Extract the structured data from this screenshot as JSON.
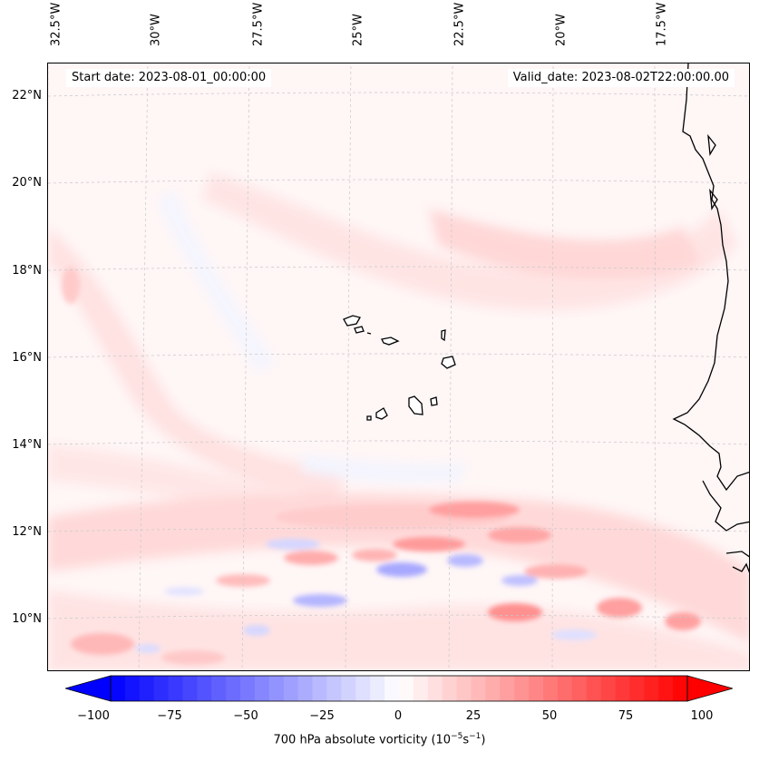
{
  "map": {
    "start_date": "Start date: 2023-08-01_00:00:00",
    "valid_date": "Valid_date: 2023-08-02T22:00:00.00",
    "lon_ticks": [
      "32.5°W",
      "30°W",
      "27.5°W",
      "25°W",
      "22.5°W",
      "20°W",
      "17.5°W"
    ],
    "lat_ticks": [
      "22°N",
      "20°N",
      "18°N",
      "16°N",
      "14°N",
      "12°N",
      "10°N"
    ],
    "features": [
      "Cape Verde Islands",
      "West African coastline"
    ]
  },
  "colorbar": {
    "ticks": [
      "−100",
      "−75",
      "−50",
      "−25",
      "0",
      "25",
      "50",
      "75",
      "100"
    ],
    "label_prefix": "700 hPa absolute vorticity (10",
    "label_exp1": "−5",
    "label_mid": "s",
    "label_exp2": "−1",
    "label_suffix": ")",
    "min": -100,
    "max": 100,
    "neg_color": "#0000ff",
    "pos_color": "#ff0000"
  },
  "colors": {
    "frame": "#000000",
    "grid": "#c8c8c8",
    "coast": "#000000"
  }
}
